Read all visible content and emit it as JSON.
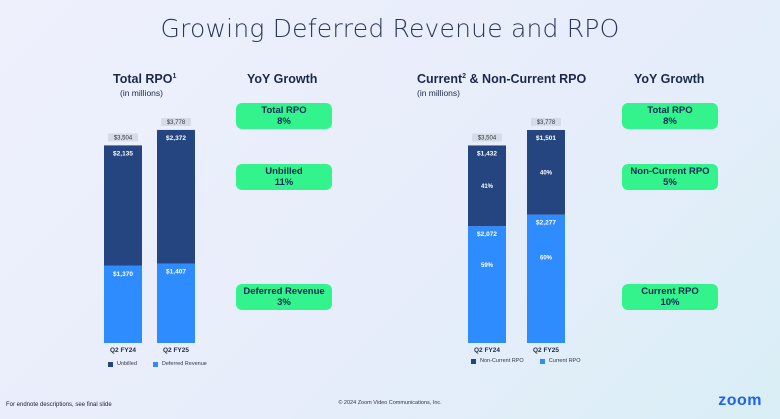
{
  "title": "Growing Deferred Revenue and RPO",
  "colors": {
    "dark": "#24457f",
    "light": "#2f8cff",
    "accent": "#33f38c"
  },
  "left": {
    "heading": "Total RPO",
    "heading_sup": "1",
    "subheading": "(in millions)",
    "yoy_heading": "YoY Growth",
    "legend": {
      "dark": "Unbilled",
      "light": "Deferred Revenue"
    },
    "pills": [
      {
        "label": "Total RPO",
        "value": "8%"
      },
      {
        "label": "Unbilled",
        "value": "11%"
      },
      {
        "label": "Deferred Revenue",
        "value": "3%"
      }
    ]
  },
  "right": {
    "heading": "Current",
    "heading_sup": "2",
    "heading_rest": " & Non-Current RPO",
    "subheading": "(in millions)",
    "yoy_heading": "YoY Growth",
    "legend": {
      "dark": "Non-Current RPO",
      "light": "Current RPO"
    },
    "pills": [
      {
        "label": "Total RPO",
        "value": "8%"
      },
      {
        "label": "Non-Current RPO",
        "value": "5%"
      },
      {
        "label": "Current RPO",
        "value": "10%"
      }
    ]
  },
  "chart_data": [
    {
      "type": "bar",
      "stacked": true,
      "categories": [
        "Q2 FY24",
        "Q2 FY25"
      ],
      "totals": [
        "$3,504",
        "$3,778"
      ],
      "series": [
        {
          "name": "Unbilled",
          "values": [
            2135,
            2372
          ],
          "labels": [
            "$2,135",
            "$2,372"
          ],
          "pct_labels": [
            "",
            ""
          ]
        },
        {
          "name": "Deferred Revenue",
          "values": [
            1370,
            1407
          ],
          "labels": [
            "$1,370",
            "$1,407"
          ],
          "pct_labels": [
            "",
            ""
          ]
        }
      ]
    },
    {
      "type": "bar",
      "stacked": true,
      "categories": [
        "Q2 FY24",
        "Q2 FY25"
      ],
      "totals": [
        "$3,504",
        "$3,778"
      ],
      "series": [
        {
          "name": "Non-Current RPO",
          "values": [
            1432,
            1501
          ],
          "labels": [
            "$1,432",
            "$1,501"
          ],
          "pct_labels": [
            "41%",
            "40%"
          ]
        },
        {
          "name": "Current RPO",
          "values": [
            2072,
            2277
          ],
          "labels": [
            "$2,072",
            "$2,277"
          ],
          "pct_labels": [
            "59%",
            "60%"
          ]
        }
      ]
    }
  ],
  "footnote": "For endnote descriptions, see final slide",
  "copyright": "© 2024 Zoom Video Communications, Inc.",
  "logo": "zoom"
}
